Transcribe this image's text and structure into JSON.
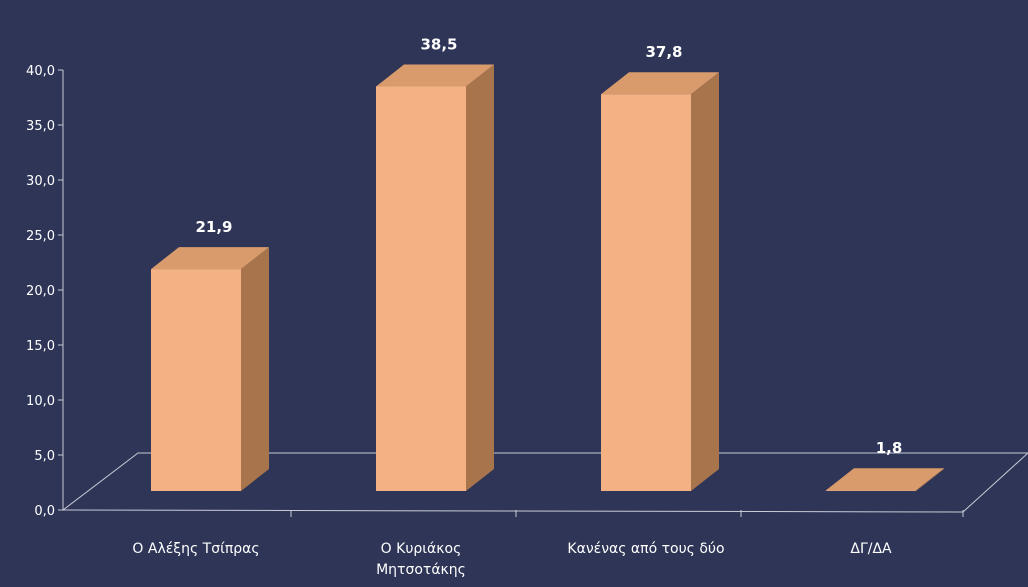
{
  "colors": {
    "background": "#2e3557",
    "bar_front": "#f4b183",
    "bar_top": "#d99b6c",
    "bar_side": "#a8744c",
    "text": "#ffffff",
    "axis": "#c9cbd6"
  },
  "chart_data": {
    "type": "bar",
    "three_d": true,
    "categories": [
      "Ο Αλέξης Τσίπρας",
      "Ο Κυριάκος\nΜητσοτάκης",
      "Κανένας από τους δύο",
      "ΔΓ/ΔΑ"
    ],
    "values": [
      21.9,
      38.5,
      37.8,
      1.8
    ],
    "data_labels": [
      "21,9",
      "38,5",
      "37,8",
      "1,8"
    ],
    "y_ticks": [
      "0,0",
      "5,0",
      "10,0",
      "15,0",
      "20,0",
      "25,0",
      "30,0",
      "35,0",
      "40,0"
    ],
    "ylim": [
      0,
      40
    ],
    "grid": false,
    "legend": "none",
    "title": "",
    "xlabel": "",
    "ylabel": ""
  }
}
